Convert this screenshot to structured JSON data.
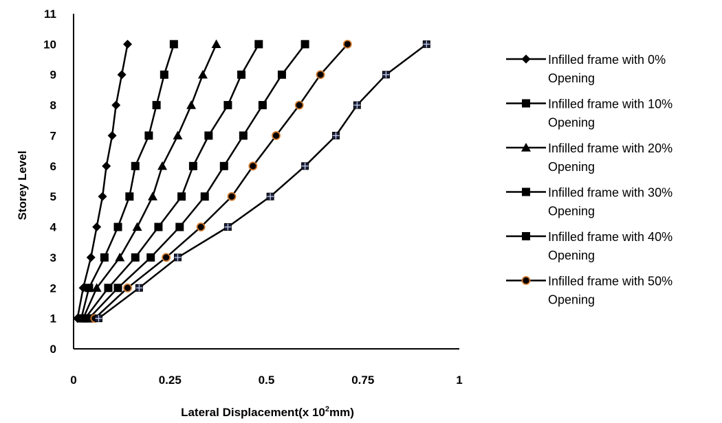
{
  "chart_data": {
    "type": "line",
    "title": "",
    "xlabel": "Lateral Displacement(x 10",
    "xlabel_sup": "2",
    "xlabel_suffix": "mm)",
    "ylabel": "Storey Level",
    "xlim": [
      0,
      1
    ],
    "ylim": [
      0,
      11
    ],
    "x_ticks": [
      0,
      0.25,
      0.5,
      0.75,
      1
    ],
    "x_tick_labels": [
      "0",
      "0.25",
      "0.5",
      "0.75",
      "1"
    ],
    "y_ticks": [
      0,
      1,
      2,
      3,
      4,
      5,
      6,
      7,
      8,
      9,
      10,
      11
    ],
    "y_tick_labels": [
      "0",
      "1",
      "2",
      "3",
      "4",
      "5",
      "6",
      "7",
      "8",
      "9",
      "10",
      "11"
    ],
    "grid": false,
    "legend_position": "right",
    "series": [
      {
        "name": "Infilled frame with 0% Opening",
        "legend_lines": [
          "Infilled frame with 0%",
          "Opening"
        ],
        "marker": "diamond",
        "color": "#000000",
        "points": [
          [
            0.01,
            1
          ],
          [
            0.025,
            2
          ],
          [
            0.045,
            3
          ],
          [
            0.06,
            4
          ],
          [
            0.075,
            5
          ],
          [
            0.085,
            6
          ],
          [
            0.1,
            7
          ],
          [
            0.11,
            8
          ],
          [
            0.125,
            9
          ],
          [
            0.14,
            10
          ]
        ]
      },
      {
        "name": "Infilled frame with 10% Opening",
        "legend_lines": [
          "Infilled frame with 10%",
          "Opening"
        ],
        "marker": "square",
        "color": "#000000",
        "points": [
          [
            0.02,
            1
          ],
          [
            0.04,
            2
          ],
          [
            0.08,
            3
          ],
          [
            0.115,
            4
          ],
          [
            0.145,
            5
          ],
          [
            0.16,
            6
          ],
          [
            0.195,
            7
          ],
          [
            0.215,
            8
          ],
          [
            0.235,
            9
          ],
          [
            0.26,
            10
          ]
        ]
      },
      {
        "name": "Infilled frame with 20% Opening",
        "legend_lines": [
          "Infilled frame with 20%",
          "Opening"
        ],
        "marker": "triangle",
        "color": "#000000",
        "points": [
          [
            0.025,
            1
          ],
          [
            0.06,
            2
          ],
          [
            0.12,
            3
          ],
          [
            0.165,
            4
          ],
          [
            0.205,
            5
          ],
          [
            0.23,
            6
          ],
          [
            0.27,
            7
          ],
          [
            0.305,
            8
          ],
          [
            0.335,
            9
          ],
          [
            0.37,
            10
          ]
        ]
      },
      {
        "name": "Infilled frame with 30% Opening",
        "legend_lines": [
          "Infilled frame with 30%",
          "Opening"
        ],
        "marker": "square",
        "color": "#000000",
        "points": [
          [
            0.03,
            1
          ],
          [
            0.09,
            2
          ],
          [
            0.16,
            3
          ],
          [
            0.22,
            4
          ],
          [
            0.28,
            5
          ],
          [
            0.31,
            6
          ],
          [
            0.35,
            7
          ],
          [
            0.4,
            8
          ],
          [
            0.435,
            9
          ],
          [
            0.48,
            10
          ]
        ]
      },
      {
        "name": "Infilled frame with 40% Opening",
        "legend_lines": [
          "Infilled frame with 40%",
          "Opening"
        ],
        "marker": "square",
        "color": "#000000",
        "points": [
          [
            0.04,
            1
          ],
          [
            0.115,
            2
          ],
          [
            0.2,
            3
          ],
          [
            0.275,
            4
          ],
          [
            0.34,
            5
          ],
          [
            0.39,
            6
          ],
          [
            0.44,
            7
          ],
          [
            0.49,
            8
          ],
          [
            0.54,
            9
          ],
          [
            0.6,
            10
          ]
        ]
      },
      {
        "name": "Infilled frame with 50% Opening",
        "legend_lines": [
          "Infilled frame with 50%",
          "Opening"
        ],
        "marker": "circle",
        "color": "#000000",
        "marker_stroke": "#d07a30",
        "points": [
          [
            0.055,
            1
          ],
          [
            0.14,
            2
          ],
          [
            0.24,
            3
          ],
          [
            0.33,
            4
          ],
          [
            0.41,
            5
          ],
          [
            0.465,
            6
          ],
          [
            0.525,
            7
          ],
          [
            0.585,
            8
          ],
          [
            0.64,
            9
          ],
          [
            0.71,
            10
          ]
        ]
      },
      {
        "name": "",
        "legend_lines": [],
        "marker": "square-cross",
        "color": "#000000",
        "points": [
          [
            0.065,
            1
          ],
          [
            0.17,
            2
          ],
          [
            0.27,
            3
          ],
          [
            0.4,
            4
          ],
          [
            0.51,
            5
          ],
          [
            0.6,
            6
          ],
          [
            0.68,
            7
          ],
          [
            0.735,
            8
          ],
          [
            0.81,
            9
          ],
          [
            0.915,
            10
          ]
        ]
      }
    ]
  }
}
